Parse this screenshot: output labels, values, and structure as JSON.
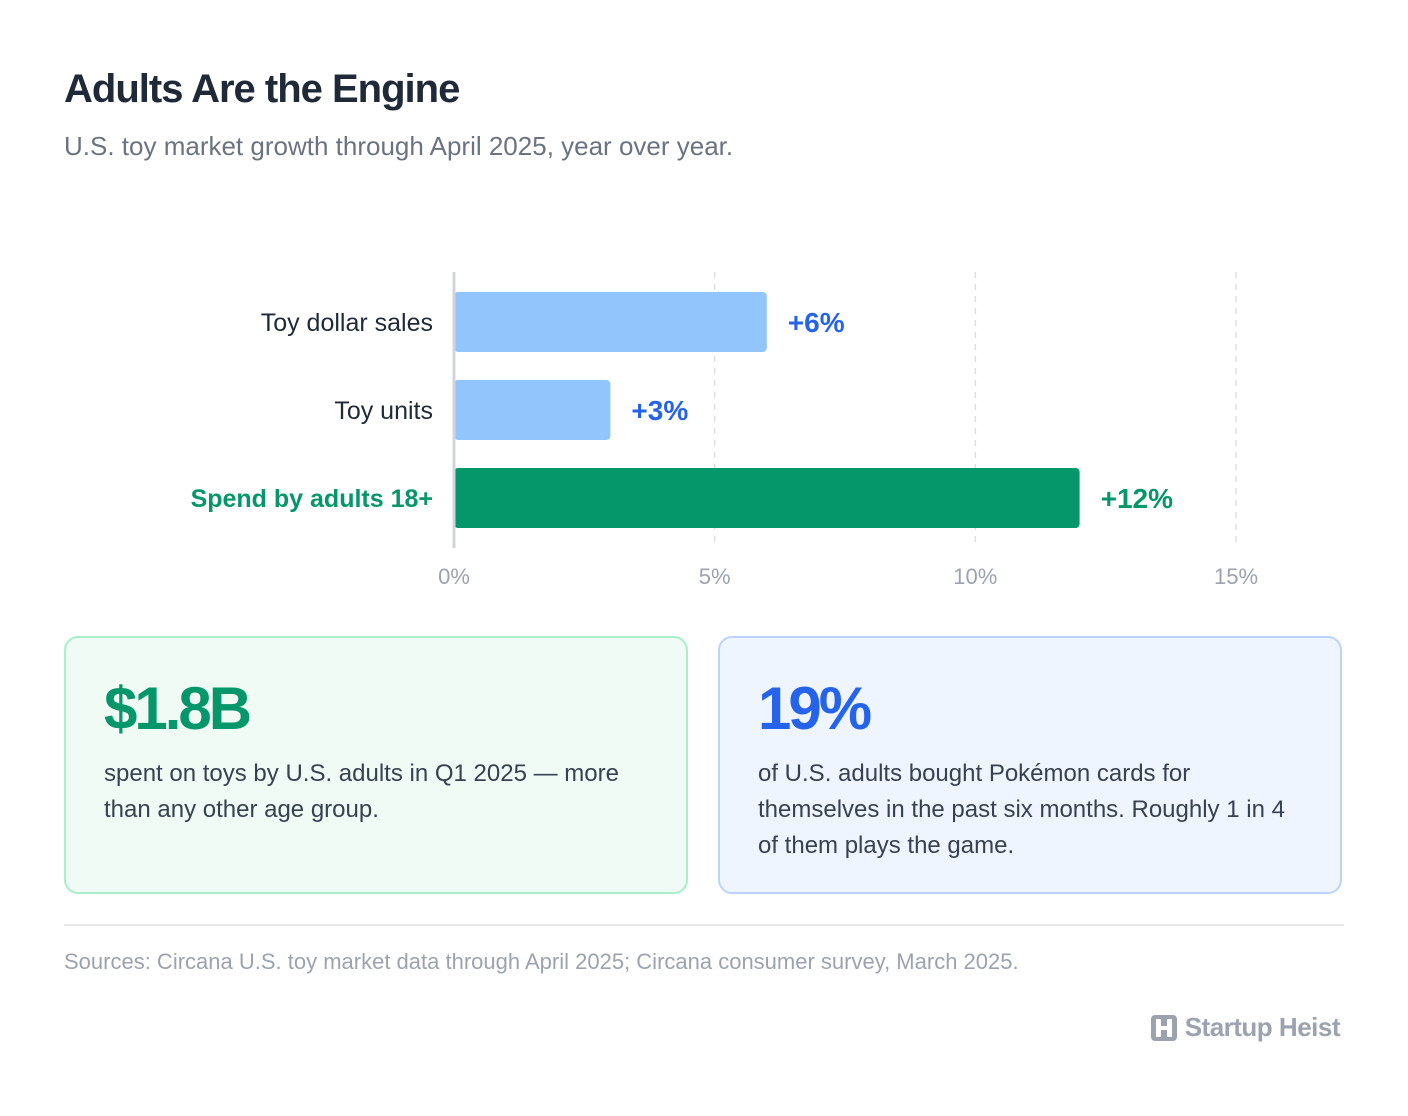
{
  "header": {
    "title": "Adults Are the Engine",
    "subtitle": "U.S. toy market growth through April 2025, year over year."
  },
  "chart_data": {
    "type": "bar",
    "orientation": "horizontal",
    "categories": [
      "Toy dollar sales",
      "Toy units",
      "Spend by adults 18+"
    ],
    "values": [
      6,
      3,
      12
    ],
    "data_labels": [
      "+6%",
      "+3%",
      "+12%"
    ],
    "xlim": [
      0,
      15
    ],
    "x_ticks": [
      0,
      5,
      10,
      15
    ],
    "x_tick_labels": [
      "0%",
      "5%",
      "10%",
      "15%"
    ],
    "grid": "vertical dashed",
    "colors": [
      "#93c5fd",
      "#93c5fd",
      "#059669"
    ],
    "category_label_colors": [
      "#1f2937",
      "#1f2937",
      "#059669"
    ],
    "data_label_colors": [
      "#2563eb",
      "#2563eb",
      "#059669"
    ],
    "highlight_index": 2
  },
  "cards": [
    {
      "value": "$1.8B",
      "text": "spent on toys by U.S. adults in Q1 2025 — more than any other age group.",
      "accent": "#059669"
    },
    {
      "value": "19%",
      "text": "of U.S. adults bought Pokémon cards for themselves in the past six months. Roughly 1 in 4 of them plays the game.",
      "accent": "#2563eb"
    }
  ],
  "footer": {
    "sources": "Sources: Circana U.S. toy market data through April 2025; Circana consumer survey, March 2025.",
    "brand": "Startup Heist",
    "brand_icon": "h-logo-icon"
  }
}
